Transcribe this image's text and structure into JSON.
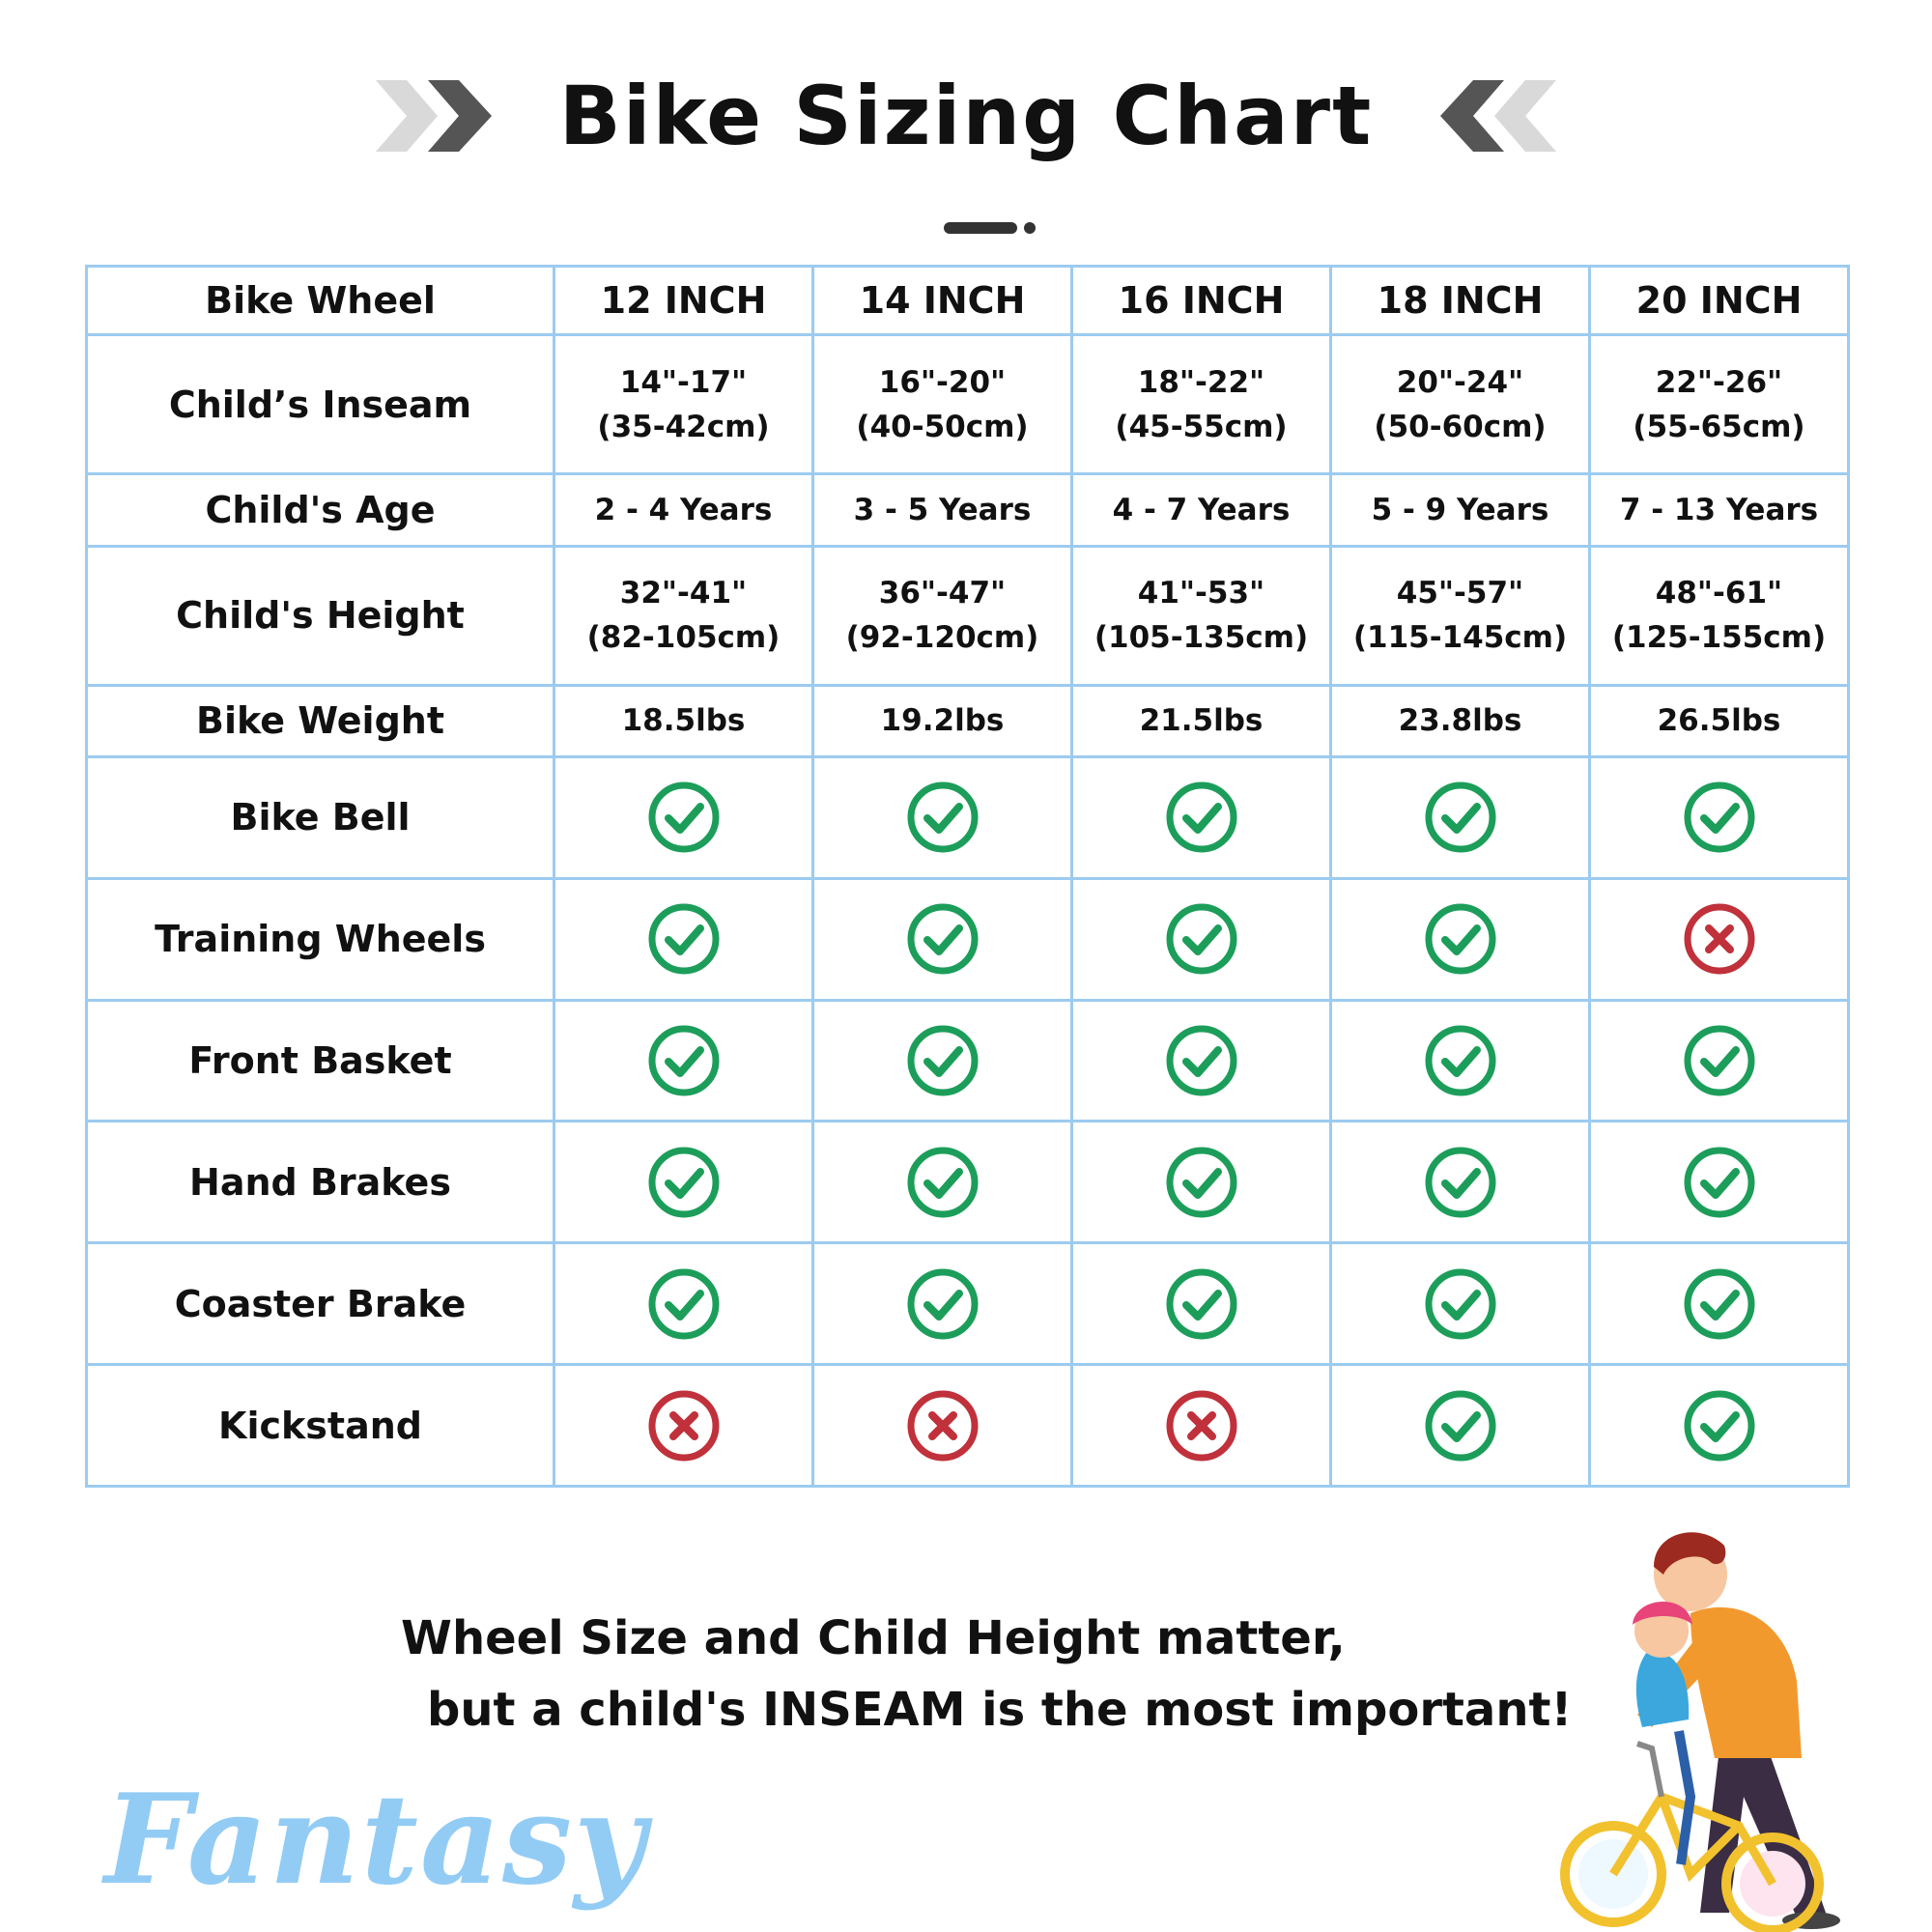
{
  "title": "Bike Sizing Chart",
  "table": {
    "header": {
      "label": "Bike Wheel",
      "sizes": [
        "12 INCH",
        "14 INCH",
        "16 INCH",
        "18 INCH",
        "20 INCH"
      ]
    },
    "text_rows": [
      {
        "label": "Child’s Inseam",
        "values": [
          "14\"-17\"\n(35-42cm)",
          "16\"-20\"\n(40-50cm)",
          "18\"-22\"\n(45-55cm)",
          "20\"-24\"\n(50-60cm)",
          "22\"-26\"\n(55-65cm)"
        ]
      },
      {
        "label": "Child's Age",
        "values": [
          "2 - 4 Years",
          "3 - 5 Years",
          "4 - 7 Years",
          "5 - 9 Years",
          "7 - 13 Years"
        ]
      },
      {
        "label": "Child's Height",
        "values": [
          "32\"-41\"\n(82-105cm)",
          "36\"-47\"\n(92-120cm)",
          "41\"-53\"\n(105-135cm)",
          "45\"-57\"\n(115-145cm)",
          "48\"-61\"\n(125-155cm)"
        ]
      },
      {
        "label": "Bike Weight",
        "values": [
          "18.5lbs",
          "19.2lbs",
          "21.5lbs",
          "23.8lbs",
          "26.5lbs"
        ]
      }
    ],
    "feature_rows": [
      {
        "label": "Bike Bell",
        "values": [
          true,
          true,
          true,
          true,
          true
        ]
      },
      {
        "label": "Training Wheels",
        "values": [
          true,
          true,
          true,
          true,
          false
        ]
      },
      {
        "label": "Front Basket",
        "values": [
          true,
          true,
          true,
          true,
          true
        ]
      },
      {
        "label": "Hand Brakes",
        "values": [
          true,
          true,
          true,
          true,
          true
        ]
      },
      {
        "label": "Coaster Brake",
        "values": [
          true,
          true,
          true,
          true,
          true
        ]
      },
      {
        "label": "Kickstand",
        "values": [
          false,
          false,
          false,
          true,
          true
        ]
      }
    ]
  },
  "note": {
    "line1": "Wheel Size and Child Height matter,",
    "line2": "but a child's INSEAM is the most important!"
  },
  "brand": "Fantasy",
  "colors": {
    "check": "#1c9e5a",
    "cross": "#c0313b",
    "grid": "#9ccbf0",
    "brand": "#92ccf5"
  },
  "icons": {
    "yes": "check-circle-icon",
    "no": "cross-circle-icon"
  }
}
